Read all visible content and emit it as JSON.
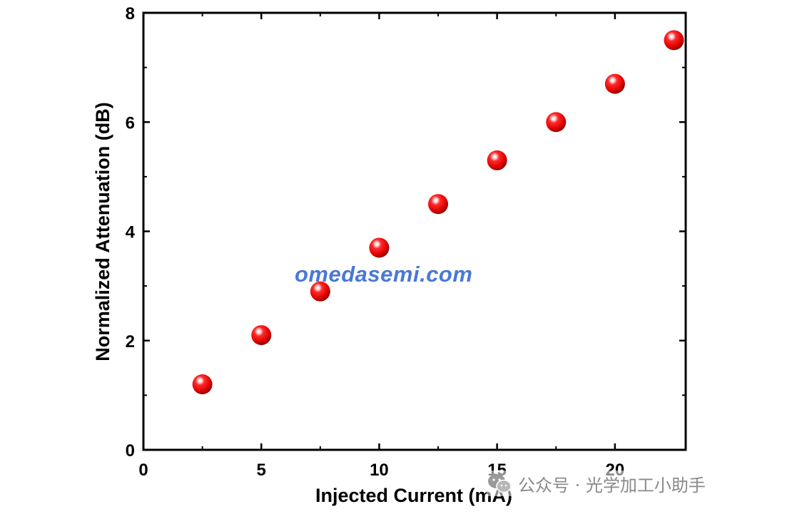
{
  "chart_data": {
    "type": "scatter",
    "xlabel": "Injected Current (mA)",
    "ylabel": "Normalized Attenuation (dB)",
    "xlim": [
      0,
      23
    ],
    "ylim": [
      0,
      8
    ],
    "xticks": [
      0,
      5,
      10,
      15,
      20
    ],
    "yticks": [
      0,
      2,
      4,
      6,
      8
    ],
    "x": [
      2.5,
      5,
      7.5,
      10,
      12.5,
      15,
      17.5,
      20,
      22.5
    ],
    "y": [
      1.2,
      2.1,
      2.9,
      3.7,
      4.5,
      5.3,
      6.0,
      6.7,
      7.5
    ],
    "marker_color": "#e00000",
    "grid": false
  },
  "watermark": {
    "text": "omedasemi.com",
    "color": "#4a78d6"
  },
  "source_tag": {
    "text": "公众号 · 光学加工小助手",
    "icon": "wechat-icon"
  }
}
